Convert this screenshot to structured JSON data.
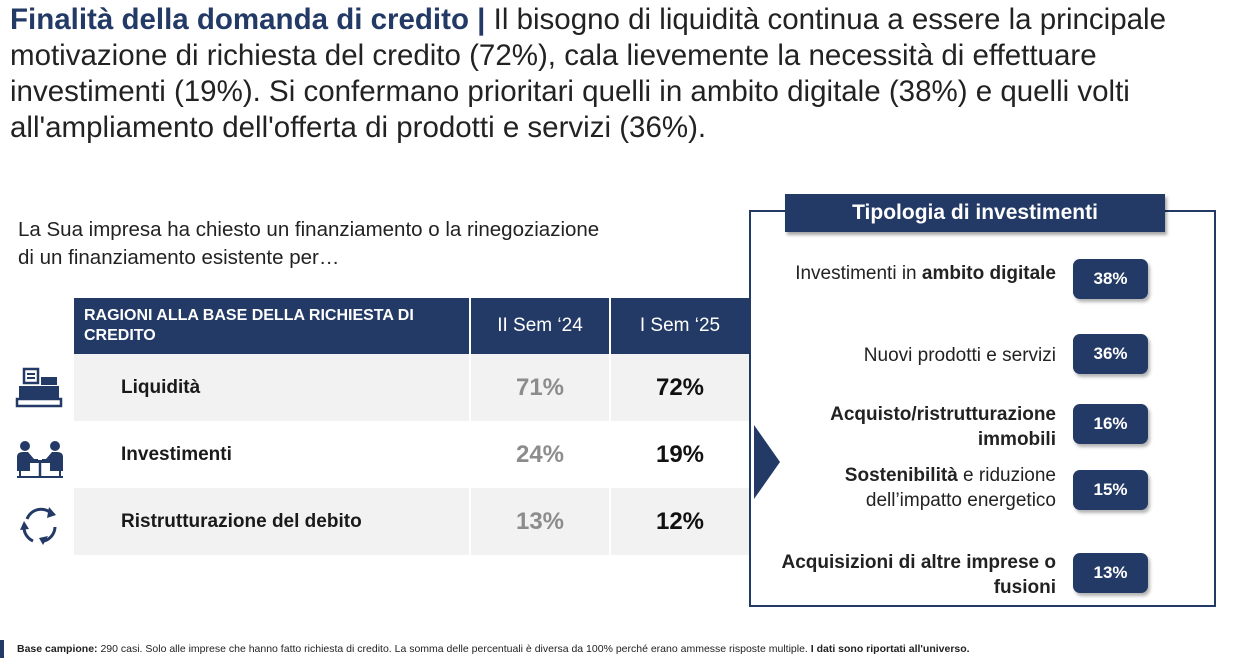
{
  "headline": {
    "title": "Finalità della domanda di credito",
    "separator": " | ",
    "text": "Il bisogno di liquidità continua a essere la principale motivazione di richiesta del credito (72%), cala lievemente la necessità di effettuare investimenti (19%). Si confermano prioritari quelli in ambito digitale (38%) e quelli volti all'ampliamento dell'offerta di prodotti e servizi (36%)."
  },
  "question": "La Sua impresa ha chiesto un finanziamento o la rinegoziazione di un finanziamento esistente per…",
  "table": {
    "header_reason": "RAGIONI ALLA BASE DELLA RICHIESTA DI CREDITO",
    "header_col1": "II Sem ‘24",
    "header_col2": "I Sem ‘25",
    "rows": [
      {
        "icon": "cash-register-icon",
        "label": "Liquidità",
        "v1": "71%",
        "v2": "72%"
      },
      {
        "icon": "meeting-people-icon",
        "label": "Investimenti",
        "v1": "24%",
        "v2": "19%"
      },
      {
        "icon": "refresh-cycle-icon",
        "label": "Ristrutturazione del debito",
        "v1": "13%",
        "v2": "12%"
      }
    ]
  },
  "investments": {
    "title": "Tipologia di investimenti",
    "items": [
      {
        "pre": "Investimenti in ",
        "bold": "ambito digitale",
        "post": "",
        "value": "38%"
      },
      {
        "pre": "Nuovi prodotti e servizi",
        "bold": "",
        "post": "",
        "value": "36%"
      },
      {
        "pre": "",
        "bold": "Acquisto/ristrutturazione immobili",
        "post": "",
        "value": "16%"
      },
      {
        "pre": "",
        "bold": "Sostenibilità",
        "post": " e riduzione dell’impatto energetico",
        "value": "15%"
      },
      {
        "pre": "",
        "bold": "Acquisizioni di altre imprese o fusioni",
        "post": "",
        "value": "13%"
      }
    ]
  },
  "footnote": {
    "label": "Base campione:",
    "text": " 290 casi. Solo alle imprese che hanno fatto richiesta di credito. La somma delle percentuali è diversa da 100% perché erano ammesse risposte multiple. ",
    "bold_end": "I dati sono riportati all'universo."
  },
  "colors": {
    "navy": "#233a66",
    "row_shade": "#f2f2f2",
    "muted_value": "#8c8c8c"
  }
}
